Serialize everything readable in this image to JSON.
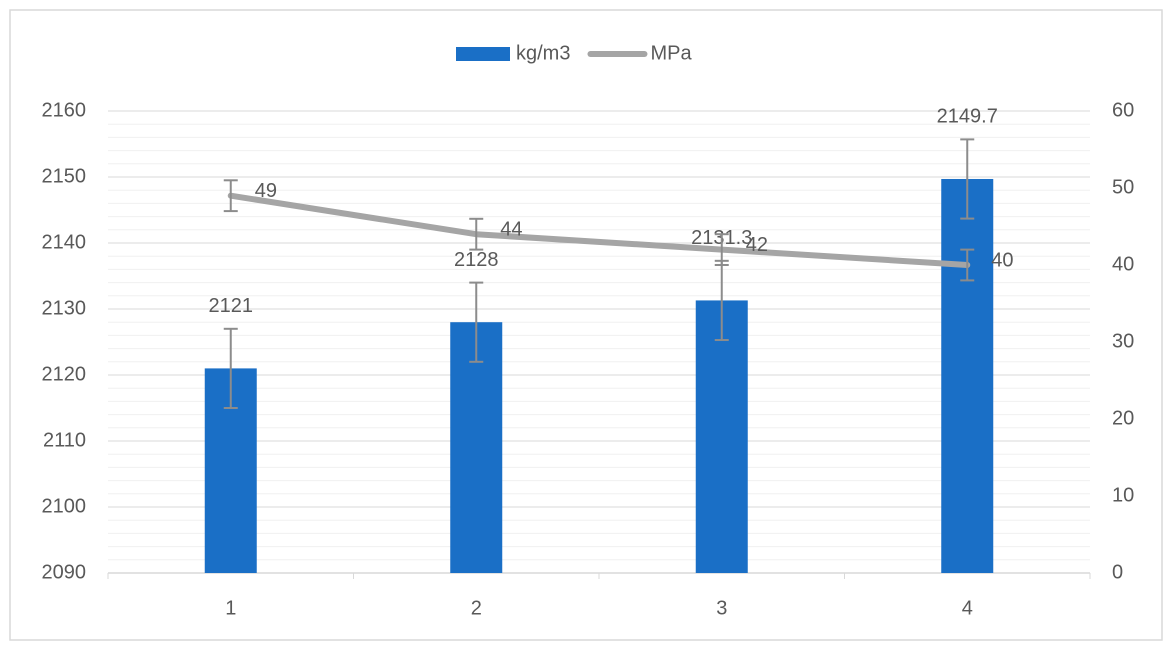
{
  "chart_data": {
    "type": "bar-line",
    "categories": [
      "1",
      "2",
      "3",
      "4"
    ],
    "series": [
      {
        "name": "kg/m3",
        "type": "bar",
        "color": "#1a6fc6",
        "values": [
          2121,
          2128,
          2131.3,
          2149.7
        ],
        "error": [
          6,
          6,
          6,
          6
        ]
      },
      {
        "name": "MPa",
        "type": "line",
        "axis": "y2",
        "color": "#a5a5a5",
        "values": [
          49,
          44,
          42,
          40
        ],
        "error": [
          2,
          2,
          2,
          2
        ]
      }
    ],
    "ylim": [
      2090,
      2160
    ],
    "yticks": [
      2090,
      2100,
      2110,
      2120,
      2130,
      2140,
      2150,
      2160
    ],
    "y2lim": [
      0,
      60
    ],
    "y2ticks": [
      0,
      10,
      20,
      30,
      40,
      50,
      60
    ],
    "grid": true,
    "legend": "top",
    "data_labels": true
  }
}
